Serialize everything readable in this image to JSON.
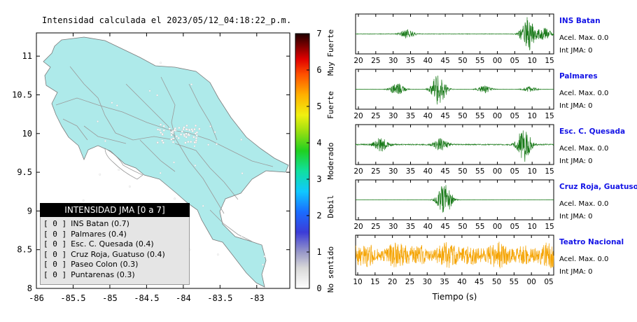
{
  "map": {
    "title": "Intensidad calculada el 2023/05/12_04:18:22_p.m.",
    "x_ticks": [
      "-86",
      "-85.5",
      "-85",
      "-84.5",
      "-84",
      "-83.5",
      "-83"
    ],
    "y_ticks": [
      "8",
      "8.5",
      "9",
      "9.5",
      "10",
      "10.5",
      "11"
    ],
    "land_color": "#aeeaea",
    "colorbar": {
      "ticks": [
        "0",
        "1",
        "2",
        "3",
        "4",
        "5",
        "6",
        "7"
      ],
      "labels": [
        "No sentido",
        "Debil",
        "Moderado",
        "Fuerte",
        "Muy Fuerte"
      ]
    }
  },
  "legend": {
    "title": "INTENSIDAD JMA [0 a 7]",
    "items": [
      {
        "value": "[ 0 ]",
        "label": "INS Batan (0.7)"
      },
      {
        "value": "[ 0 ]",
        "label": "Palmares (0.4)"
      },
      {
        "value": "[ 0 ]",
        "label": "Esc. C. Quesada (0.4)"
      },
      {
        "value": "[ 0 ]",
        "label": "Cruz Roja, Guatuso (0.4)"
      },
      {
        "value": "[ 0 ]",
        "label": "Paseo Colon (0.3)"
      },
      {
        "value": "[ 0 ]",
        "label": "Puntarenas (0.3)"
      }
    ]
  },
  "stations": [
    {
      "name": "INS Batan",
      "accel": "Acel. Max. 0.0",
      "jma": "Int JMA: 0",
      "ticks": [
        "20",
        "25",
        "30",
        "35",
        "40",
        "45",
        "50",
        "55",
        "00",
        "05",
        "10",
        "15"
      ],
      "color": "#1a7a1a"
    },
    {
      "name": "Palmares",
      "accel": "Acel. Max. 0.0",
      "jma": "Int JMA: 0",
      "ticks": [
        "20",
        "25",
        "30",
        "35",
        "40",
        "45",
        "50",
        "55",
        "00",
        "05",
        "10",
        "15"
      ],
      "color": "#1a7a1a"
    },
    {
      "name": "Esc. C. Quesada",
      "accel": "Acel. Max. 0.0",
      "jma": "Int JMA: 0",
      "ticks": [
        "20",
        "25",
        "30",
        "35",
        "40",
        "45",
        "50",
        "55",
        "00",
        "05",
        "10",
        "15"
      ],
      "color": "#1a7a1a"
    },
    {
      "name": "Cruz Roja, Guatuso",
      "accel": "Acel. Max. 0.0",
      "jma": "Int JMA: 0",
      "ticks": [
        "20",
        "25",
        "30",
        "35",
        "40",
        "45",
        "50",
        "55",
        "00",
        "05",
        "10",
        "15"
      ],
      "color": "#1a7a1a"
    },
    {
      "name": "Teatro Nacional",
      "accel": "Acel. Max. 0.0",
      "jma": "Int JMA: 0",
      "ticks": [
        "10",
        "15",
        "20",
        "25",
        "30",
        "35",
        "40",
        "45",
        "50",
        "55",
        "00",
        "05"
      ],
      "color": "#f5a300"
    }
  ],
  "chart_data": {
    "type": "line",
    "xlabel": "Tiempo (s)",
    "series": [
      {
        "name": "INS Batan",
        "bursts": [
          {
            "center": 0.26,
            "amp": 0.25
          },
          {
            "center": 0.87,
            "amp": 0.95
          },
          {
            "center": 0.95,
            "amp": 0.35
          }
        ],
        "noise": 0.1
      },
      {
        "name": "Palmares",
        "bursts": [
          {
            "center": 0.21,
            "amp": 0.35
          },
          {
            "center": 0.42,
            "amp": 0.95
          },
          {
            "center": 0.65,
            "amp": 0.2
          },
          {
            "center": 0.88,
            "amp": 0.15
          }
        ],
        "noise": 0.05
      },
      {
        "name": "Esc. C. Quesada",
        "bursts": [
          {
            "center": 0.13,
            "amp": 0.4
          },
          {
            "center": 0.43,
            "amp": 0.35
          },
          {
            "center": 0.85,
            "amp": 0.95
          }
        ],
        "noise": 0.2
      },
      {
        "name": "Cruz Roja, Guatuso",
        "bursts": [
          {
            "center": 0.45,
            "amp": 0.95
          }
        ],
        "noise": 0.04
      },
      {
        "name": "Teatro Nacional",
        "bursts": [
          {
            "center": 0.5,
            "amp": 0.7
          }
        ],
        "noise": 0.9
      }
    ]
  }
}
